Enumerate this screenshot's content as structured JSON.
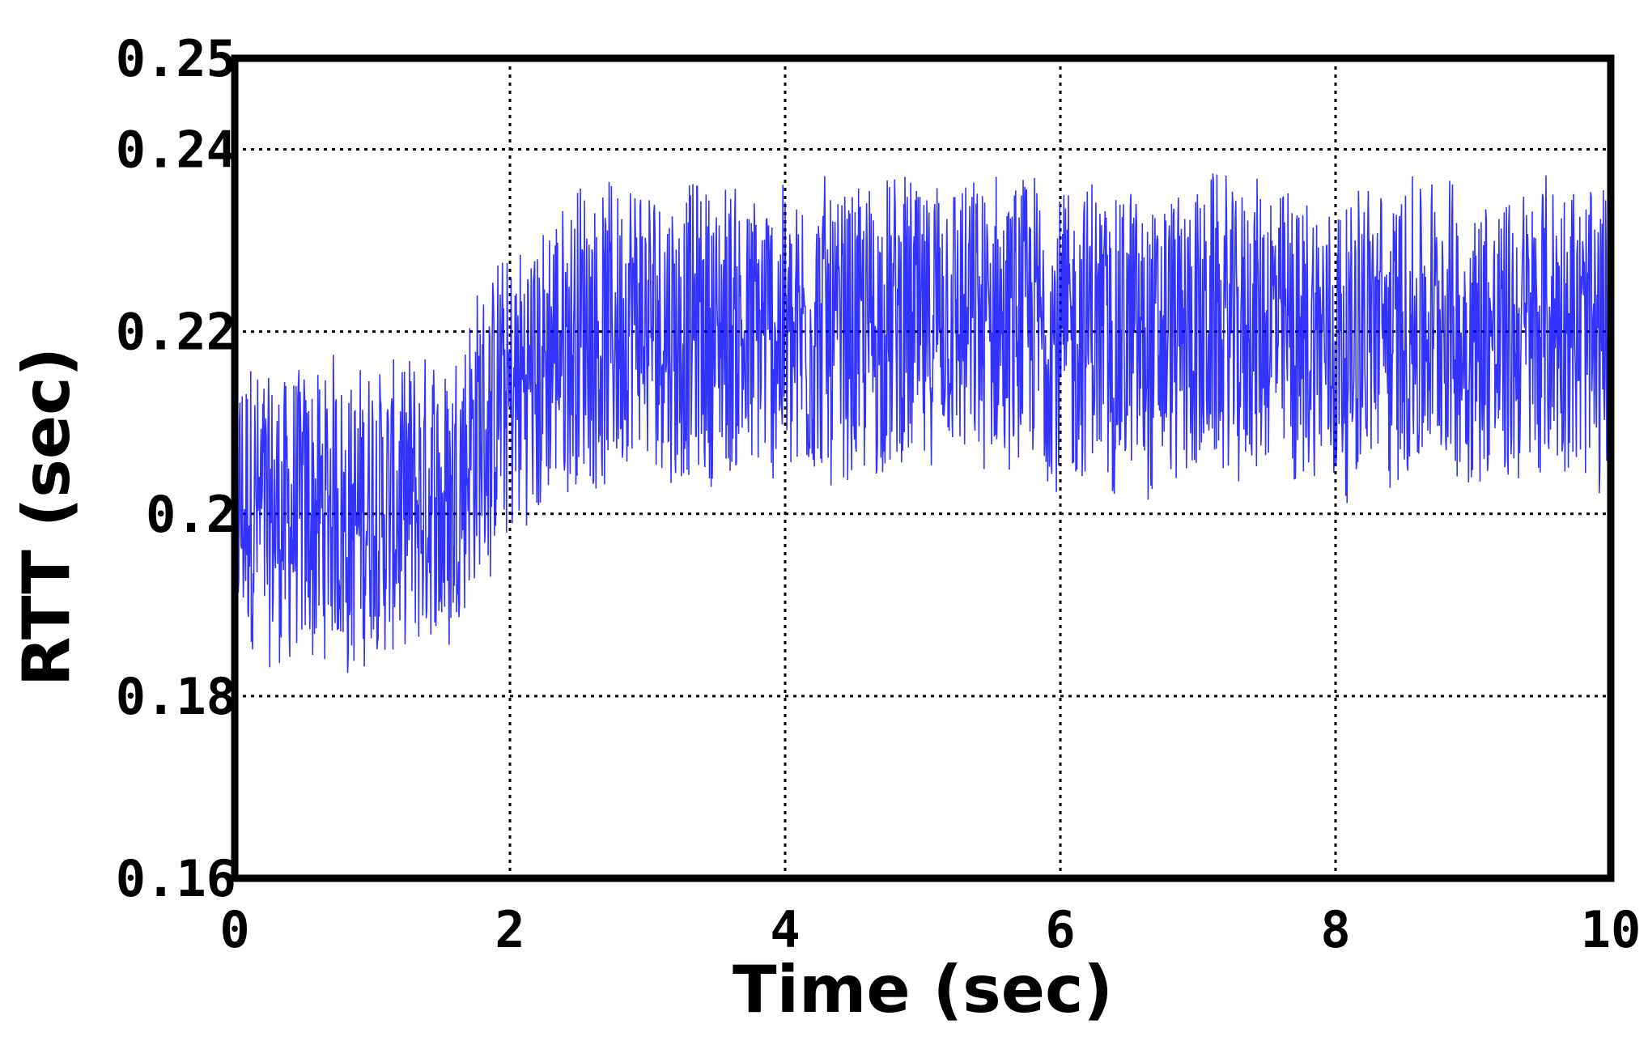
{
  "chart_data": {
    "type": "line",
    "title": "",
    "xlabel": "Time (sec)",
    "ylabel": "RTT (sec)",
    "xlim": [
      0,
      10
    ],
    "ylim": [
      0.16,
      0.25
    ],
    "x_ticks": [
      0,
      2,
      4,
      6,
      8,
      10
    ],
    "x_tick_labels": [
      "0",
      "2",
      "4",
      "6",
      "8",
      "10"
    ],
    "y_ticks": [
      0.16,
      0.18,
      0.2,
      0.22,
      0.24,
      0.25
    ],
    "y_tick_labels": [
      "0.16",
      "0.18",
      "0.2",
      "0.22",
      "0.24",
      "0.25"
    ],
    "grid": true,
    "grid_style": "dotted",
    "legend": "none",
    "series": [
      {
        "color": "#0000ff",
        "mean_profile": {
          "x": [
            0,
            0.5,
            1.0,
            1.5,
            1.7,
            2.0,
            2.5,
            3.0,
            4.0,
            5.0,
            6.0,
            7.0,
            8.0,
            9.0,
            10.0
          ],
          "y": [
            0.2,
            0.2,
            0.2,
            0.2,
            0.208,
            0.213,
            0.22,
            0.22,
            0.22,
            0.22,
            0.22,
            0.22,
            0.22,
            0.22,
            0.22
          ]
        },
        "fluctuation_amplitude": 0.02,
        "min_value": 0.18,
        "max_value": 0.241
      }
    ]
  }
}
